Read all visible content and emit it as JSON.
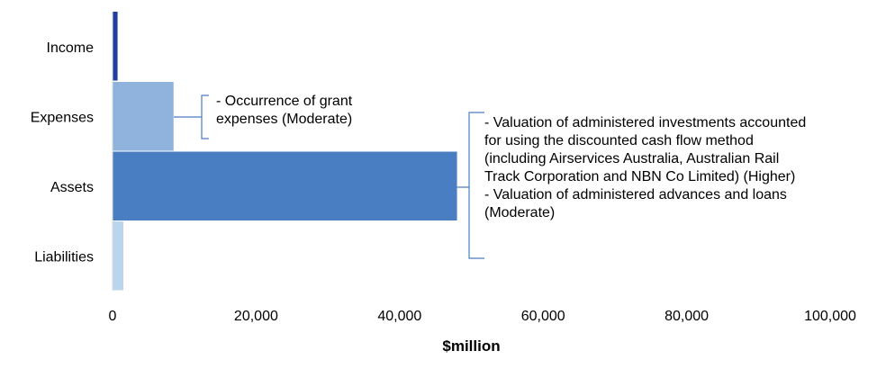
{
  "chart_data": {
    "type": "bar",
    "orientation": "horizontal",
    "categories": [
      "Income",
      "Expenses",
      "Assets",
      "Liabilities"
    ],
    "values": [
      700,
      8500,
      48000,
      1500
    ],
    "colors": [
      "#1e3fa0",
      "#8fb3dc",
      "#4a7ec2",
      "#b9d6ee"
    ],
    "xlabel": "$million",
    "xlim": [
      0,
      100000
    ],
    "xticks": [
      0,
      20000,
      40000,
      60000,
      80000,
      100000
    ],
    "xtick_labels": [
      "0",
      "20,000",
      "40,000",
      "60,000",
      "80,000",
      "100,000"
    ],
    "grid": false,
    "annotations": [
      {
        "target": "Expenses",
        "lines": [
          "- Occurrence of grant",
          "expenses (Moderate)"
        ]
      },
      {
        "target": "Assets",
        "lines": [
          "- Valuation of administered investments accounted",
          "for using the discounted cash flow method",
          "(including Airservices Australia, Australian Rail",
          "Track Corporation and NBN Co Limited) (Higher)",
          "- Valuation of administered advances and loans",
          "(Moderate)"
        ]
      }
    ]
  }
}
